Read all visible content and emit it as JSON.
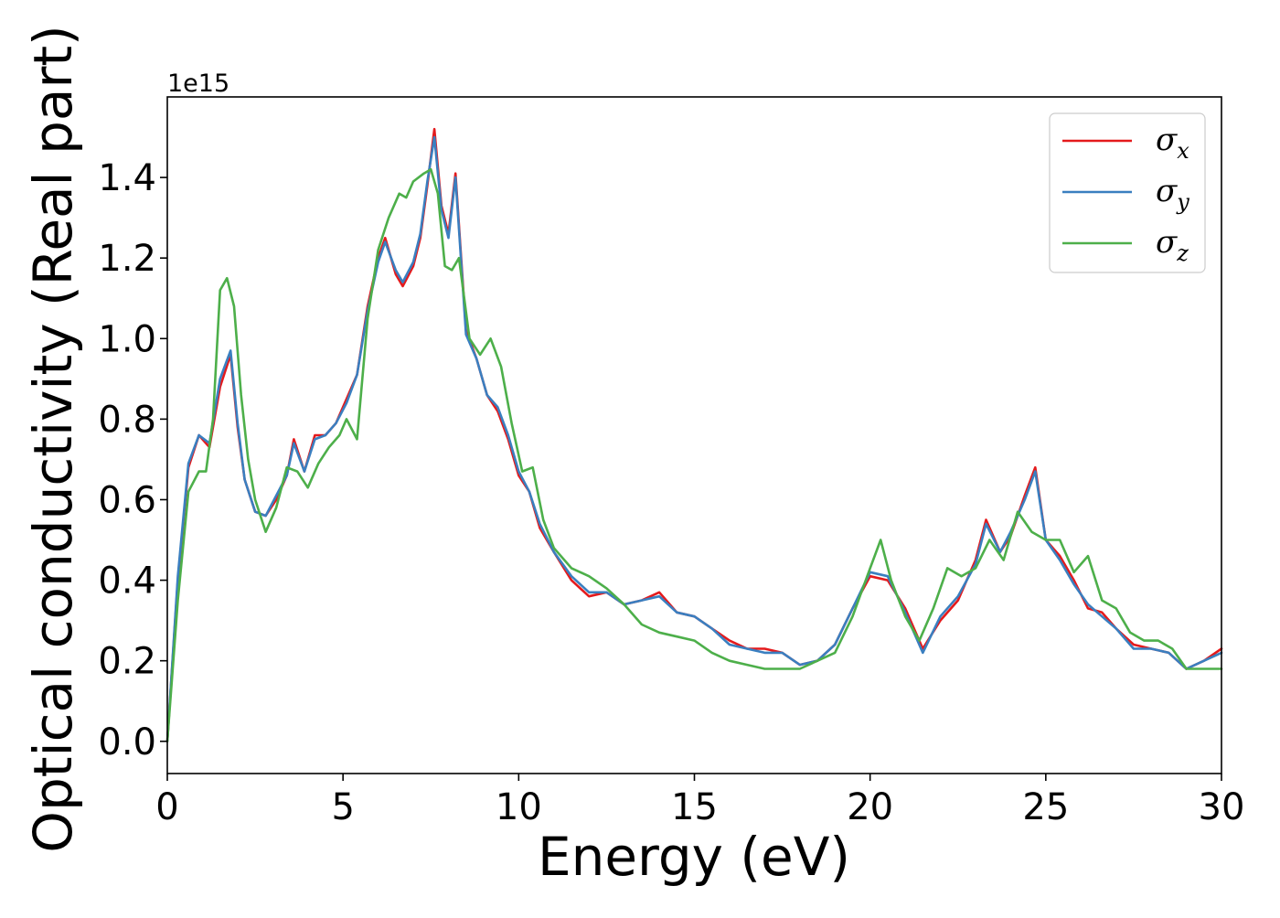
{
  "chart_data": {
    "type": "line",
    "title": "",
    "xlabel": "Energy (eV)",
    "ylabel": "Optical conductivity (Real part)",
    "y_offset_text": "1e15",
    "y_multiplier": 1000000000000000.0,
    "xlim": [
      0,
      30
    ],
    "ylim": [
      -0.08,
      1.6
    ],
    "x_ticks": [
      0,
      5,
      10,
      15,
      20,
      25,
      30
    ],
    "x_tick_labels": [
      "0",
      "5",
      "10",
      "15",
      "20",
      "25",
      "30"
    ],
    "y_ticks": [
      0.0,
      0.2,
      0.4,
      0.6,
      0.8,
      1.0,
      1.2,
      1.4
    ],
    "y_tick_labels": [
      "0.0",
      "0.2",
      "0.4",
      "0.6",
      "0.8",
      "1.0",
      "1.2",
      "1.4"
    ],
    "grid": false,
    "legend_position": "top-right",
    "series": [
      {
        "name": "σ_x",
        "legend_base": "σ",
        "legend_sub": "x",
        "color": "#e41a1c",
        "x": [
          0,
          0.3,
          0.6,
          0.9,
          1.2,
          1.5,
          1.8,
          2.0,
          2.2,
          2.5,
          2.8,
          3.1,
          3.4,
          3.6,
          3.9,
          4.2,
          4.5,
          4.8,
          5.1,
          5.4,
          5.7,
          6.0,
          6.2,
          6.5,
          6.7,
          7.0,
          7.2,
          7.4,
          7.6,
          7.8,
          8.0,
          8.2,
          8.5,
          8.8,
          9.1,
          9.4,
          9.7,
          10.0,
          10.3,
          10.6,
          11.0,
          11.5,
          12.0,
          12.5,
          13.0,
          13.5,
          14.0,
          14.5,
          15.0,
          15.5,
          16.0,
          16.5,
          17.0,
          17.5,
          18.0,
          18.5,
          19.0,
          19.5,
          20.0,
          20.5,
          21.0,
          21.5,
          22.0,
          22.5,
          23.0,
          23.3,
          23.7,
          24.0,
          24.4,
          24.7,
          25.0,
          25.4,
          25.8,
          26.2,
          26.6,
          27.0,
          27.5,
          28.0,
          28.5,
          29.0,
          29.5,
          30.0
        ],
        "y": [
          0.0,
          0.4,
          0.68,
          0.76,
          0.73,
          0.88,
          0.96,
          0.78,
          0.65,
          0.57,
          0.56,
          0.6,
          0.66,
          0.75,
          0.67,
          0.76,
          0.76,
          0.79,
          0.85,
          0.91,
          1.08,
          1.2,
          1.25,
          1.16,
          1.13,
          1.18,
          1.25,
          1.38,
          1.52,
          1.33,
          1.26,
          1.41,
          1.02,
          0.95,
          0.86,
          0.82,
          0.75,
          0.66,
          0.62,
          0.53,
          0.47,
          0.4,
          0.36,
          0.37,
          0.34,
          0.35,
          0.37,
          0.32,
          0.31,
          0.28,
          0.25,
          0.23,
          0.23,
          0.22,
          0.19,
          0.2,
          0.24,
          0.33,
          0.41,
          0.4,
          0.33,
          0.23,
          0.3,
          0.35,
          0.45,
          0.55,
          0.47,
          0.51,
          0.61,
          0.68,
          0.5,
          0.46,
          0.4,
          0.33,
          0.32,
          0.28,
          0.24,
          0.23,
          0.22,
          0.18,
          0.2,
          0.23
        ]
      },
      {
        "name": "σ_y",
        "legend_base": "σ",
        "legend_sub": "y",
        "color": "#3a7fc0",
        "x": [
          0,
          0.3,
          0.6,
          0.9,
          1.2,
          1.5,
          1.8,
          2.0,
          2.2,
          2.5,
          2.8,
          3.1,
          3.4,
          3.6,
          3.9,
          4.2,
          4.5,
          4.8,
          5.1,
          5.4,
          5.7,
          6.0,
          6.2,
          6.5,
          6.7,
          7.0,
          7.2,
          7.4,
          7.6,
          7.8,
          8.0,
          8.2,
          8.5,
          8.8,
          9.1,
          9.4,
          9.7,
          10.0,
          10.3,
          10.6,
          11.0,
          11.5,
          12.0,
          12.5,
          13.0,
          13.5,
          14.0,
          14.5,
          15.0,
          15.5,
          16.0,
          16.5,
          17.0,
          17.5,
          18.0,
          18.5,
          19.0,
          19.5,
          20.0,
          20.5,
          21.0,
          21.5,
          22.0,
          22.5,
          23.0,
          23.3,
          23.7,
          24.0,
          24.4,
          24.7,
          25.0,
          25.4,
          25.8,
          26.2,
          26.6,
          27.0,
          27.5,
          28.0,
          28.5,
          29.0,
          29.5,
          30.0
        ],
        "y": [
          0.0,
          0.41,
          0.69,
          0.76,
          0.74,
          0.9,
          0.97,
          0.79,
          0.65,
          0.57,
          0.56,
          0.61,
          0.66,
          0.74,
          0.67,
          0.75,
          0.76,
          0.79,
          0.84,
          0.91,
          1.07,
          1.19,
          1.24,
          1.17,
          1.14,
          1.19,
          1.26,
          1.39,
          1.5,
          1.32,
          1.25,
          1.4,
          1.01,
          0.95,
          0.86,
          0.83,
          0.76,
          0.67,
          0.62,
          0.54,
          0.47,
          0.41,
          0.37,
          0.37,
          0.34,
          0.35,
          0.36,
          0.32,
          0.31,
          0.28,
          0.24,
          0.23,
          0.22,
          0.22,
          0.19,
          0.2,
          0.24,
          0.33,
          0.42,
          0.41,
          0.32,
          0.22,
          0.31,
          0.36,
          0.44,
          0.54,
          0.47,
          0.52,
          0.6,
          0.67,
          0.5,
          0.45,
          0.39,
          0.34,
          0.31,
          0.28,
          0.23,
          0.23,
          0.22,
          0.18,
          0.2,
          0.22
        ]
      },
      {
        "name": "σ_z",
        "legend_base": "σ",
        "legend_sub": "z",
        "color": "#4daf4a",
        "x": [
          0,
          0.3,
          0.6,
          0.9,
          1.1,
          1.3,
          1.5,
          1.7,
          1.9,
          2.1,
          2.3,
          2.5,
          2.8,
          3.1,
          3.4,
          3.7,
          4.0,
          4.3,
          4.6,
          4.9,
          5.1,
          5.4,
          5.7,
          6.0,
          6.3,
          6.6,
          6.8,
          7.0,
          7.3,
          7.5,
          7.7,
          7.9,
          8.1,
          8.3,
          8.6,
          8.9,
          9.2,
          9.5,
          9.8,
          10.1,
          10.4,
          10.7,
          11.0,
          11.5,
          12.0,
          12.5,
          13.0,
          13.5,
          14.0,
          14.5,
          15.0,
          15.5,
          16.0,
          16.5,
          17.0,
          17.5,
          18.0,
          18.5,
          19.0,
          19.5,
          20.0,
          20.3,
          20.6,
          21.0,
          21.4,
          21.8,
          22.2,
          22.6,
          23.0,
          23.4,
          23.8,
          24.2,
          24.6,
          25.0,
          25.4,
          25.8,
          26.2,
          26.6,
          27.0,
          27.4,
          27.8,
          28.2,
          28.6,
          29.0,
          29.5,
          30.0
        ],
        "y": [
          0.0,
          0.35,
          0.62,
          0.67,
          0.67,
          0.8,
          1.12,
          1.15,
          1.08,
          0.86,
          0.7,
          0.6,
          0.52,
          0.58,
          0.68,
          0.67,
          0.63,
          0.69,
          0.73,
          0.76,
          0.8,
          0.75,
          1.05,
          1.22,
          1.3,
          1.36,
          1.35,
          1.39,
          1.41,
          1.42,
          1.36,
          1.18,
          1.17,
          1.2,
          1.0,
          0.96,
          1.0,
          0.93,
          0.79,
          0.67,
          0.68,
          0.55,
          0.48,
          0.43,
          0.41,
          0.38,
          0.34,
          0.29,
          0.27,
          0.26,
          0.25,
          0.22,
          0.2,
          0.19,
          0.18,
          0.18,
          0.18,
          0.2,
          0.22,
          0.31,
          0.43,
          0.5,
          0.4,
          0.31,
          0.25,
          0.33,
          0.43,
          0.41,
          0.43,
          0.5,
          0.45,
          0.57,
          0.52,
          0.5,
          0.5,
          0.42,
          0.46,
          0.35,
          0.33,
          0.27,
          0.25,
          0.25,
          0.23,
          0.18,
          0.18,
          0.18
        ]
      }
    ]
  }
}
